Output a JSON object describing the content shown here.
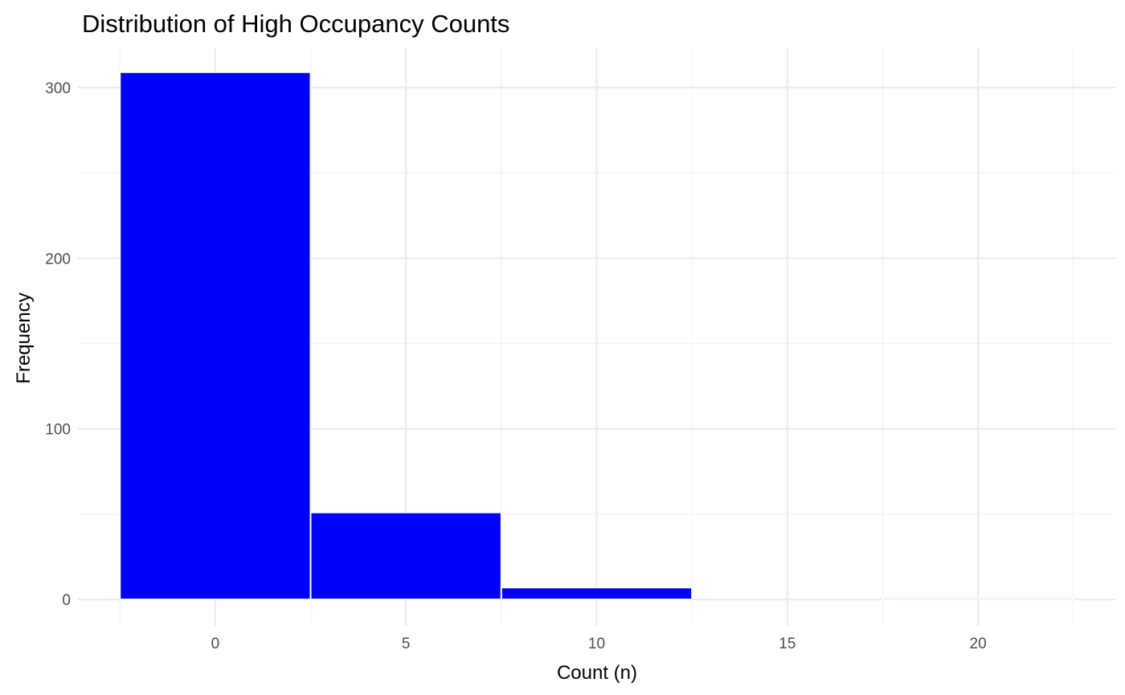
{
  "chart_data": {
    "type": "bar",
    "title": "Distribution of High Occupancy Counts",
    "xlabel": "Count (n)",
    "ylabel": "Frequency",
    "bins": [
      {
        "x0": -2.5,
        "x1": 2.5,
        "value": 309
      },
      {
        "x0": 2.5,
        "x1": 7.5,
        "value": 51
      },
      {
        "x0": 7.5,
        "x1": 12.5,
        "value": 7
      },
      {
        "x0": 12.5,
        "x1": 17.5,
        "value": 0
      },
      {
        "x0": 17.5,
        "x1": 22.5,
        "value": 1
      }
    ],
    "xlim": [
      -3.6,
      23.6
    ],
    "ylim": [
      -15.5,
      323.5
    ],
    "x_ticks": [
      0,
      5,
      10,
      15,
      20
    ],
    "x_tick_labels": [
      "0",
      "5",
      "10",
      "15",
      "20"
    ],
    "y_ticks": [
      0,
      100,
      200,
      300
    ],
    "y_tick_labels": [
      "0",
      "100",
      "200",
      "300"
    ],
    "grid": true,
    "legend": "none",
    "bar_color": "#0000ff",
    "bar_outline": "#ffffff",
    "background": "#ffffff"
  }
}
